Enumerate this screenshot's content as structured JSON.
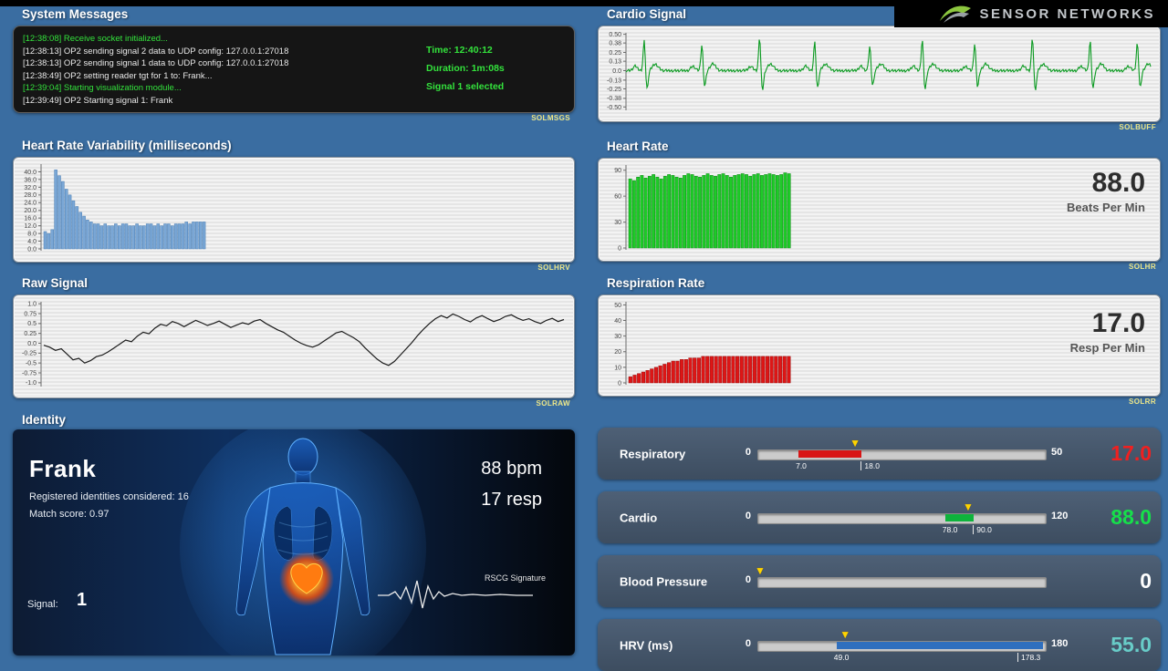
{
  "app": {
    "logo_text": "SENSOR NETWORKS"
  },
  "panels": {
    "system_messages": {
      "title": "System Messages",
      "tag": "SOLMSGS",
      "log": [
        {
          "text": "[12:38:08] Receive socket initialized...",
          "color": "green"
        },
        {
          "text": "[12:38:13] OP2 sending signal 2 data to UDP config: 127.0.0.1:27018",
          "color": "white"
        },
        {
          "text": "[12:38:13] OP2 sending signal 1 data to UDP config: 127.0.0.1:27018",
          "color": "white"
        },
        {
          "text": "[12:38:49] OP2 setting reader tgt for 1 to: Frank...",
          "color": "white"
        },
        {
          "text": "[12:39:04] Starting visualization module...",
          "color": "green"
        },
        {
          "text": "[12:39:49] OP2 Starting signal 1: Frank",
          "color": "white"
        }
      ],
      "info": [
        "Time: 12:40:12",
        "Duration: 1m:08s",
        "Signal 1 selected"
      ]
    },
    "cardio_signal": {
      "title": "Cardio Signal",
      "tag": "SOLBUFF"
    },
    "hrv": {
      "title": "Heart Rate Variability (milliseconds)",
      "tag": "SOLHRV"
    },
    "heart_rate": {
      "title": "Heart Rate",
      "tag": "SOLHR",
      "value": "88.0",
      "unit": "Beats Per Min"
    },
    "raw_signal": {
      "title": "Raw Signal",
      "tag": "SOLRAW"
    },
    "respiration": {
      "title": "Respiration Rate",
      "tag": "SOLRR",
      "value": "17.0",
      "unit": "Resp Per Min"
    },
    "identity": {
      "title": "Identity",
      "name": "Frank",
      "line1": "Registered identities considered: 16",
      "line2": "Match score: 0.97",
      "bpm": "88 bpm",
      "resp": "17 resp",
      "signal_label": "Signal:",
      "signal_value": "1",
      "signature_label": "RSCG Signature"
    }
  },
  "gauges": [
    {
      "label": "Respiratory",
      "min": "0",
      "max": "50",
      "min_v": 0,
      "max_v": 50,
      "seg_start": 7,
      "seg_end": 18,
      "seg_start_label": "7.0",
      "seg_end_label": "18.0",
      "marker": 17,
      "value": "17.0",
      "seg_color": "#d81414",
      "value_color": "#f02020"
    },
    {
      "label": "Cardio",
      "min": "0",
      "max": "120",
      "min_v": 0,
      "max_v": 120,
      "seg_start": 78,
      "seg_end": 90,
      "seg_start_label": "78.0",
      "seg_end_label": "90.0",
      "marker": 88,
      "value": "88.0",
      "seg_color": "#0eb33c",
      "value_color": "#16e04a"
    },
    {
      "label": "Blood Pressure",
      "min": "0",
      "max": "",
      "min_v": 0,
      "max_v": 100,
      "seg_start": 0,
      "seg_end": 0,
      "seg_start_label": "",
      "seg_end_label": "",
      "marker": 0,
      "value": "0",
      "seg_color": "transparent",
      "value_color": "#ffffff"
    },
    {
      "label": "HRV (ms)",
      "min": "0",
      "max": "180",
      "min_v": 0,
      "max_v": 180,
      "seg_start": 49,
      "seg_end": 178.3,
      "seg_start_label": "49.0",
      "seg_end_label": "178.3",
      "marker": 55,
      "value": "55.0",
      "seg_color": "#2f6fbe",
      "value_color": "#68ccc8"
    }
  ],
  "chart_data": [
    {
      "id": "cardio",
      "type": "line",
      "subtype": "ecg",
      "title": "Cardio Signal",
      "ylim": [
        -0.52,
        0.52
      ],
      "yticks": [
        "0.50",
        "0.38",
        "0.25",
        "0.13",
        "0.0",
        "-0.13",
        "-0.25",
        "-0.38",
        "-0.50"
      ],
      "color": "#0a9a20",
      "beat_positions": [
        0.035,
        0.145,
        0.255,
        0.36,
        0.465,
        0.565,
        0.665,
        0.775,
        0.885,
        0.975
      ],
      "beat_amplitudes": [
        0.46,
        0.4,
        0.5,
        0.44,
        0.38,
        0.48,
        0.42,
        0.5,
        0.46,
        0.44
      ]
    },
    {
      "id": "hrv",
      "type": "bar",
      "title": "Heart Rate Variability (milliseconds)",
      "ylim": [
        0,
        44
      ],
      "plot_fraction": 0.31,
      "yticks": [
        "40.0",
        "36.0",
        "32.0",
        "28.0",
        "24.0",
        "20.0",
        "16.0",
        "12.0",
        "8.0",
        "4.0",
        "0.0"
      ],
      "color": "#7aa7d6",
      "stroke": "#4b7fb4",
      "values": [
        9,
        8,
        10,
        41,
        38,
        35,
        31,
        28,
        25,
        22,
        19,
        17,
        15,
        14,
        13,
        13,
        12,
        13,
        12,
        12,
        13,
        12,
        13,
        13,
        12,
        12,
        13,
        12,
        12,
        13,
        13,
        12,
        13,
        12,
        13,
        13,
        12,
        13,
        13,
        13,
        14,
        13,
        14,
        14,
        14,
        14
      ]
    },
    {
      "id": "hr",
      "type": "bar",
      "title": "Heart Rate",
      "ylim": [
        0,
        96
      ],
      "plot_fraction": 0.31,
      "yticks": [
        "90",
        "60",
        "30",
        "0"
      ],
      "color": "#1ecb28",
      "stroke": "#0c8a14",
      "values": [
        80,
        78,
        82,
        84,
        81,
        83,
        85,
        82,
        80,
        83,
        85,
        84,
        82,
        81,
        84,
        86,
        85,
        83,
        82,
        84,
        86,
        84,
        83,
        85,
        86,
        84,
        82,
        84,
        85,
        86,
        85,
        83,
        85,
        86,
        84,
        85,
        86,
        85,
        84,
        85,
        87,
        86
      ]
    },
    {
      "id": "raw",
      "type": "line",
      "title": "Raw Signal",
      "ylim": [
        -1.05,
        1.05
      ],
      "yticks": [
        "1.0",
        "0.75",
        "0.5",
        "0.25",
        "0.0",
        "-0.25",
        "-0.5",
        "-0.75",
        "-1.0"
      ],
      "color": "#1c1c1c",
      "values": [
        -0.05,
        -0.1,
        -0.18,
        -0.14,
        -0.28,
        -0.42,
        -0.38,
        -0.5,
        -0.44,
        -0.34,
        -0.3,
        -0.22,
        -0.12,
        -0.02,
        0.08,
        0.04,
        0.18,
        0.28,
        0.24,
        0.38,
        0.48,
        0.44,
        0.55,
        0.5,
        0.42,
        0.5,
        0.58,
        0.52,
        0.45,
        0.5,
        0.56,
        0.48,
        0.4,
        0.46,
        0.52,
        0.48,
        0.56,
        0.6,
        0.5,
        0.42,
        0.34,
        0.28,
        0.18,
        0.08,
        0.0,
        -0.06,
        -0.1,
        -0.04,
        0.06,
        0.16,
        0.26,
        0.3,
        0.22,
        0.14,
        0.04,
        -0.12,
        -0.26,
        -0.4,
        -0.5,
        -0.56,
        -0.46,
        -0.3,
        -0.14,
        0.02,
        0.2,
        0.36,
        0.5,
        0.62,
        0.7,
        0.64,
        0.74,
        0.68,
        0.6,
        0.54,
        0.64,
        0.7,
        0.62,
        0.55,
        0.6,
        0.68,
        0.72,
        0.64,
        0.58,
        0.62,
        0.55,
        0.5,
        0.58,
        0.63,
        0.55,
        0.6
      ]
    },
    {
      "id": "resp",
      "type": "bar",
      "title": "Respiration Rate",
      "ylim": [
        0,
        52
      ],
      "plot_fraction": 0.31,
      "yticks": [
        "50",
        "40",
        "30",
        "20",
        "10",
        "0"
      ],
      "color": "#dd1616",
      "stroke": "#9c0e0e",
      "values": [
        4,
        5,
        6,
        7,
        8,
        9,
        10,
        11,
        12,
        13,
        14,
        14,
        15,
        15,
        16,
        16,
        16,
        17,
        17,
        17,
        17,
        17,
        17,
        17,
        17,
        17,
        17,
        17,
        17,
        17,
        17,
        17,
        17,
        17,
        17,
        17,
        17,
        17
      ]
    }
  ]
}
